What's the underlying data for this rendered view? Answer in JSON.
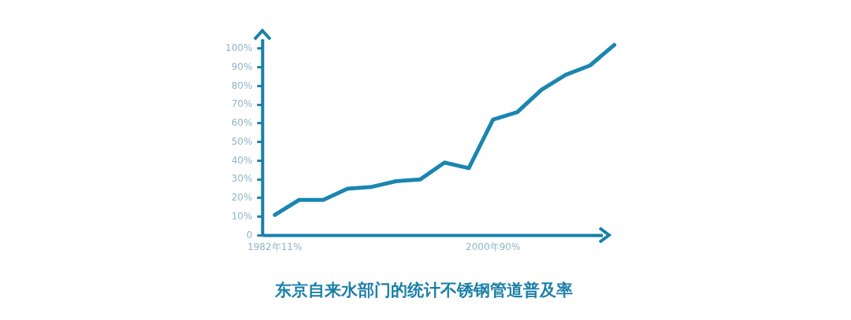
{
  "chart_data": {
    "type": "line",
    "title": "东京自来水部门的统计不锈钢管道普及率",
    "categories": [
      "1982年11%",
      null,
      null,
      null,
      null,
      null,
      null,
      null,
      null,
      "2000年90%",
      null,
      null,
      null,
      null,
      null
    ],
    "series": [
      {
        "color": "#1a86b0",
        "values": [
          11,
          19,
          19,
          25,
          26,
          29,
          30,
          39,
          36,
          62,
          66,
          78,
          86,
          91,
          102
        ]
      }
    ],
    "ylim": [
      0,
      105
    ],
    "yticks": [
      0,
      {
        "value": 10,
        "label": "10%"
      },
      {
        "value": 20,
        "label": "20%"
      },
      {
        "value": 30,
        "label": "30%"
      },
      {
        "value": 40,
        "label": "40%"
      },
      {
        "value": 50,
        "label": "50%"
      },
      {
        "value": 60,
        "label": "60%"
      },
      {
        "value": 70,
        "label": "70%"
      },
      {
        "value": 80,
        "label": "80%"
      },
      {
        "value": 90,
        "label": "90%"
      },
      {
        "value": 100,
        "label": "100%"
      }
    ],
    "grid": false,
    "legend": false,
    "marker": "none",
    "line_style": "solid"
  }
}
